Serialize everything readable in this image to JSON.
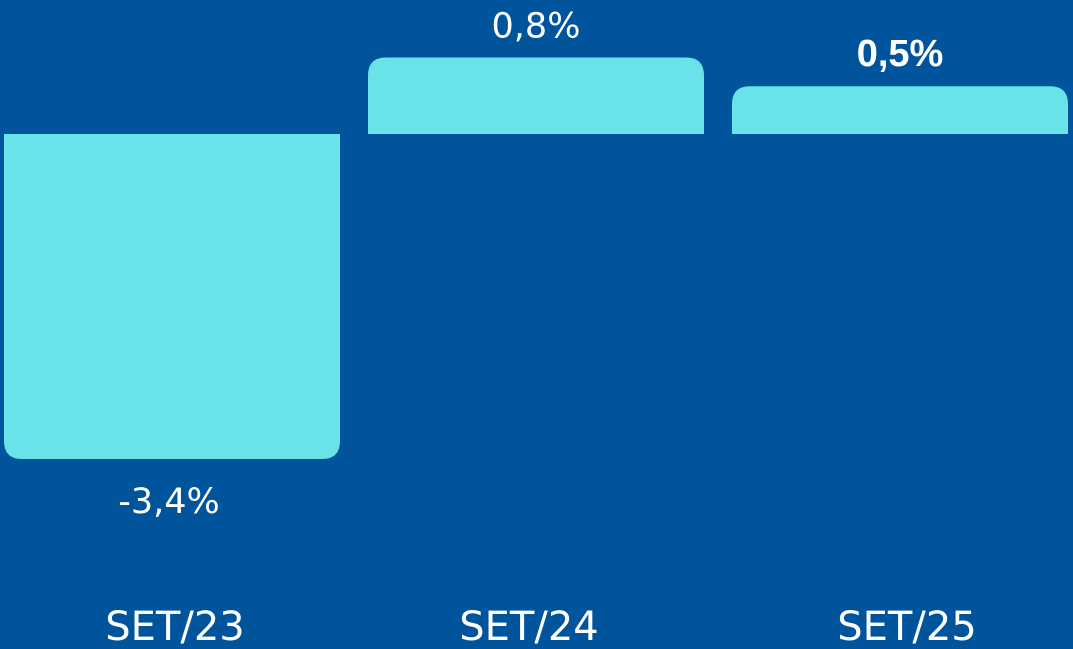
{
  "colors": {
    "background": "#00549C",
    "bar": "#69E3E7",
    "text": "#FFFFFF"
  },
  "chart_data": {
    "type": "bar",
    "categories": [
      "SET/23",
      "SET/24",
      "SET/25"
    ],
    "values": [
      -3.4,
      0.8,
      0.5
    ],
    "value_labels": [
      "-3,4%",
      "0,8%",
      "0,5%"
    ],
    "title": "",
    "xlabel": "",
    "ylabel": "",
    "ylim": [
      -3.4,
      0.8
    ],
    "grid": false,
    "legend": "none"
  }
}
